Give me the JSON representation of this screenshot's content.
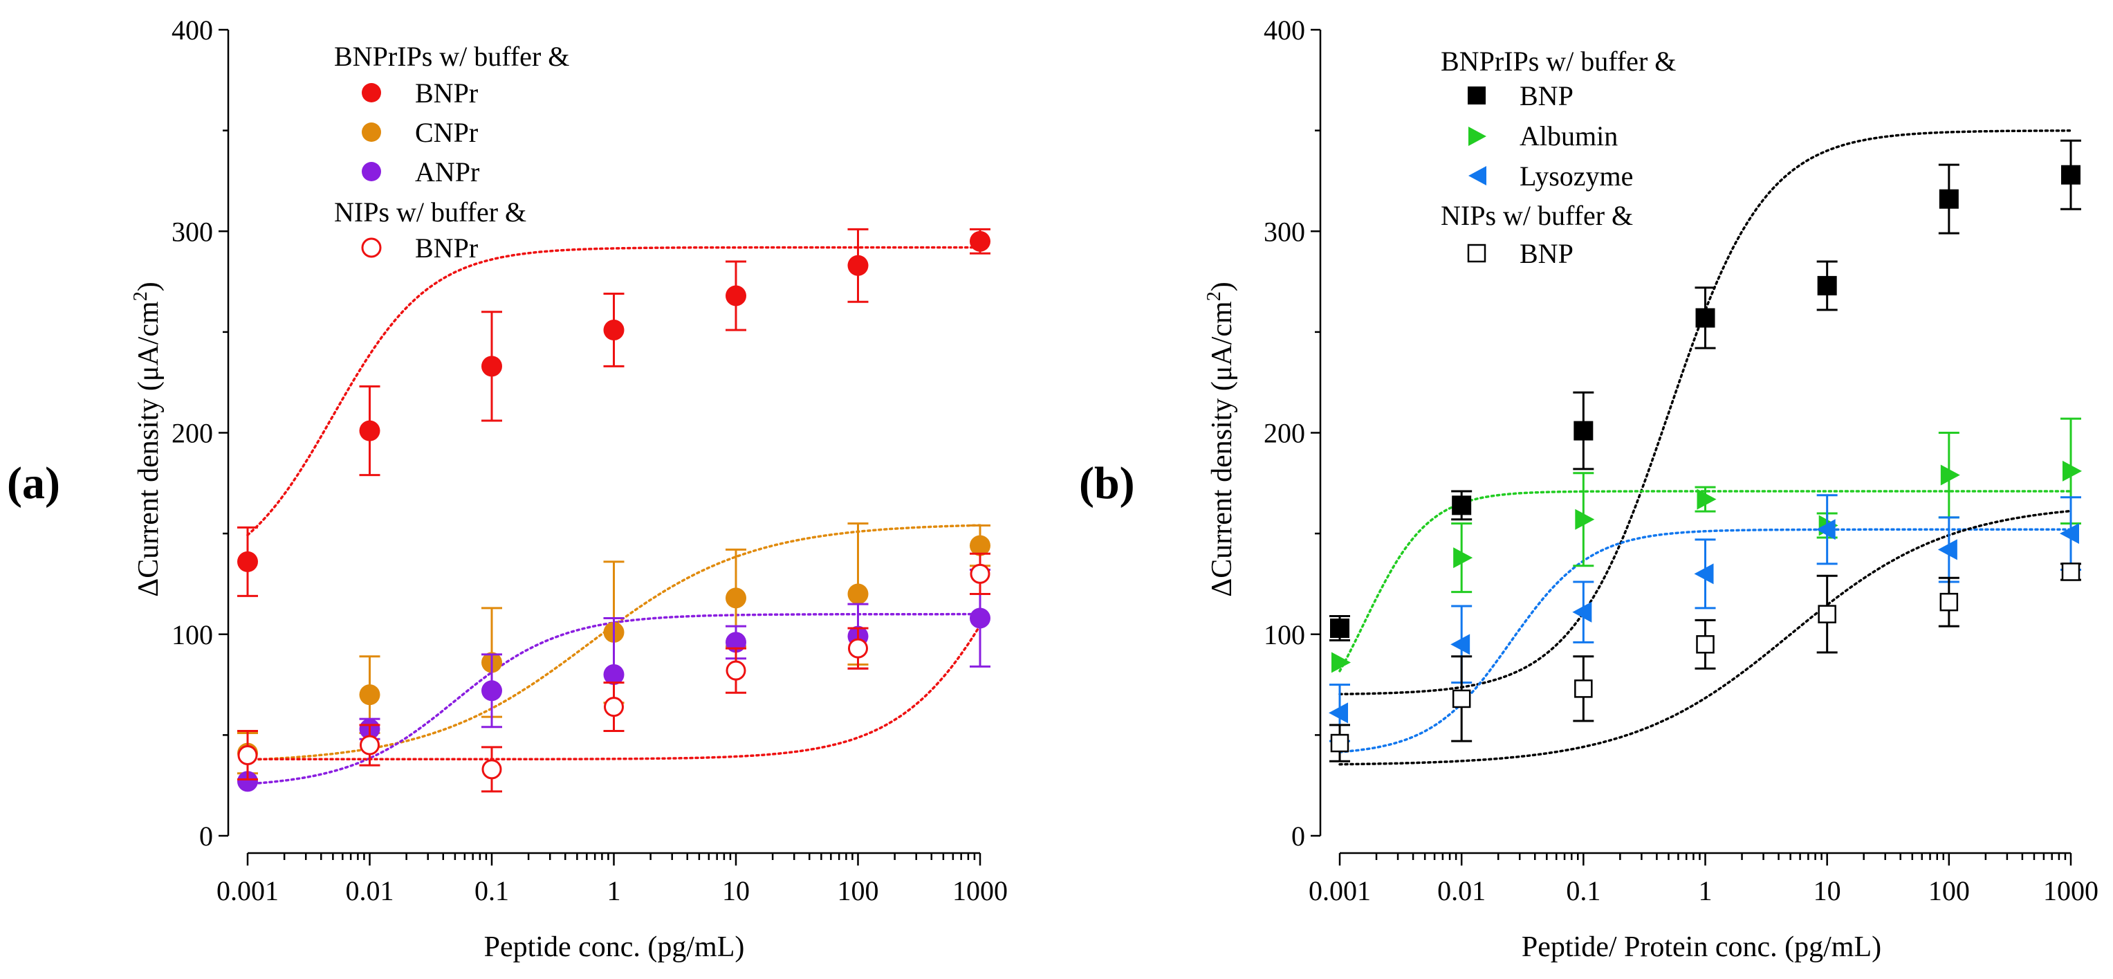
{
  "chart_data": [
    {
      "panel": "(a)",
      "type": "scatter",
      "xscale": "log",
      "x": [
        0.001,
        0.01,
        0.1,
        1,
        10,
        100,
        1000
      ],
      "xtick_labels": [
        "0.001",
        "0.01",
        "0.1",
        "1",
        "10",
        "100",
        "1000"
      ],
      "xlabel": "Peptide conc. (pg/mL)",
      "ylabel_main": "ΔCurrent density (μA/cm",
      "ylabel_sup": "2",
      "ylabel_end": ")",
      "ylim": [
        0,
        400
      ],
      "yticks": [
        0,
        100,
        200,
        300,
        400
      ],
      "ytick_labels": [
        "0",
        "100",
        "200",
        "300",
        "400"
      ],
      "legend_location": "top-left",
      "series": [
        {
          "group": "BNPrIPs w/ buffer &",
          "name": "BNPr",
          "marker": "circle",
          "filled": true,
          "color": "#ee1111",
          "values": [
            136,
            201,
            233,
            251,
            268,
            283,
            295
          ],
          "errors": [
            17,
            22,
            27,
            18,
            17,
            18,
            6
          ],
          "fit": {
            "model": "logistic",
            "bottom": 125,
            "top": 292,
            "logx0": -2.3,
            "slope": 0.5
          }
        },
        {
          "group": "BNPrIPs w/ buffer &",
          "name": "CNPr",
          "marker": "circle",
          "filled": true,
          "color": "#e08a0c",
          "values": [
            41,
            70,
            86,
            101,
            118,
            120,
            144
          ],
          "errors": [
            10,
            19,
            27,
            35,
            24,
            35,
            10
          ],
          "fit": {
            "model": "logistic",
            "bottom": 36,
            "top": 155,
            "logx0": -0.2,
            "slope": 0.3
          }
        },
        {
          "group": "BNPrIPs w/ buffer &",
          "name": "ANPr",
          "marker": "circle",
          "filled": true,
          "color": "#8a1ee0",
          "values": [
            27,
            53,
            72,
            80,
            96,
            99,
            108
          ],
          "errors": [
            0,
            5,
            18,
            28,
            8,
            16,
            24
          ],
          "fit": {
            "model": "logistic",
            "bottom": 24,
            "top": 110,
            "logx0": -1.3,
            "slope": 0.45
          }
        },
        {
          "group": "NIPs w/ buffer &",
          "name": "BNPr",
          "marker": "circle",
          "filled": false,
          "color": "#ee1111",
          "values": [
            40,
            45,
            33,
            64,
            82,
            93,
            130
          ],
          "errors": [
            12,
            10,
            11,
            12,
            11,
            10,
            10
          ],
          "fit": {
            "model": "logistic",
            "bottom": 38,
            "top": 260,
            "logx0": 3.4,
            "slope": 0.42
          }
        }
      ],
      "legend": {
        "header1": "BNPrIPs w/ buffer &",
        "items1": [
          "BNPr",
          "CNPr",
          "ANPr"
        ],
        "header2": "NIPs w/ buffer &",
        "items2": [
          "BNPr"
        ]
      }
    },
    {
      "panel": "(b)",
      "type": "scatter",
      "xscale": "log",
      "x": [
        0.001,
        0.01,
        0.1,
        1,
        10,
        100,
        1000
      ],
      "xtick_labels": [
        "0.001",
        "0.01",
        "0.1",
        "1",
        "10",
        "100",
        "1000"
      ],
      "xlabel": "Peptide/ Protein conc. (pg/mL)",
      "ylabel_main": "ΔCurrent density (μA/cm",
      "ylabel_sup": "2",
      "ylabel_end": ")",
      "ylim": [
        0,
        400
      ],
      "yticks": [
        0,
        100,
        200,
        300,
        400
      ],
      "ytick_labels": [
        "0",
        "100",
        "200",
        "300",
        "400"
      ],
      "legend_location": "top-left",
      "series": [
        {
          "group": "BNPrIPs w/ buffer &",
          "name": "BNP",
          "marker": "square",
          "filled": true,
          "color": "#000000",
          "values": [
            103,
            164,
            201,
            257,
            273,
            316,
            328
          ],
          "errors": [
            6,
            7,
            19,
            15,
            12,
            17,
            17
          ],
          "fit": {
            "model": "logistic",
            "bottom": 70,
            "top": 350,
            "logx0": -0.3,
            "slope": 0.5
          }
        },
        {
          "group": "BNPrIPs w/ buffer &",
          "name": "Albumin",
          "marker": "triangle-right",
          "filled": true,
          "color": "#22cc22",
          "values": [
            86,
            138,
            157,
            167,
            154,
            179,
            181
          ],
          "errors": [
            0,
            17,
            23,
            6,
            6,
            21,
            26
          ],
          "fit": {
            "model": "logistic",
            "bottom": 40,
            "top": 171,
            "logx0": -2.8,
            "slope": 0.75
          }
        },
        {
          "group": "BNPrIPs w/ buffer &",
          "name": "Lysozyme",
          "marker": "triangle-left",
          "filled": true,
          "color": "#1177ee",
          "values": [
            61,
            95,
            111,
            130,
            152,
            142,
            150
          ],
          "errors": [
            14,
            19,
            15,
            17,
            17,
            16,
            18
          ],
          "fit": {
            "model": "logistic",
            "bottom": 40,
            "top": 152,
            "logx0": -1.6,
            "slope": 0.6
          }
        },
        {
          "group": "NIPs w/ buffer &",
          "name": "BNP",
          "marker": "square",
          "filled": false,
          "color": "#000000",
          "values": [
            46,
            68,
            73,
            95,
            110,
            116,
            131
          ],
          "errors": [
            9,
            21,
            16,
            12,
            19,
            12,
            4
          ],
          "fit": {
            "model": "logistic",
            "bottom": 35,
            "top": 165,
            "logx0": 0.7,
            "slope": 0.3
          }
        }
      ],
      "legend": {
        "header1": "BNPrIPs w/ buffer &",
        "items1": [
          "BNP",
          "Albumin",
          "Lysozyme"
        ],
        "header2": "NIPs w/ buffer &",
        "items2": [
          "BNP"
        ]
      }
    }
  ]
}
